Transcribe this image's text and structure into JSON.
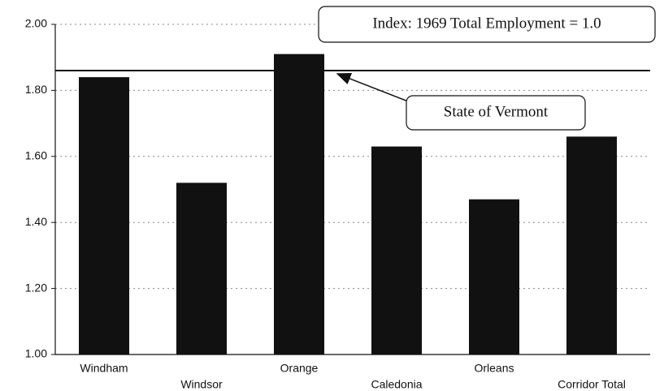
{
  "chart_data": {
    "type": "bar",
    "categories": [
      "Windham",
      "Windsor",
      "Orange",
      "Caledonia",
      "Orleans",
      "Corridor Total"
    ],
    "values": [
      1.84,
      1.52,
      1.91,
      1.63,
      1.47,
      1.66
    ],
    "color": "#111111",
    "ylim": [
      1.0,
      2.0
    ],
    "yticks": [
      {
        "value": 1.0,
        "label": "1.00"
      },
      {
        "value": 1.2,
        "label": "1.20"
      },
      {
        "value": 1.4,
        "label": "1.40"
      },
      {
        "value": 1.6,
        "label": "1.60"
      },
      {
        "value": 1.8,
        "label": "1.80"
      },
      {
        "value": 2.0,
        "label": "2.00"
      }
    ],
    "grid": true,
    "reference_line": {
      "name": "State of Vermont",
      "value": 1.86
    },
    "annotation": "Index: 1969 Total Employment = 1.0"
  }
}
